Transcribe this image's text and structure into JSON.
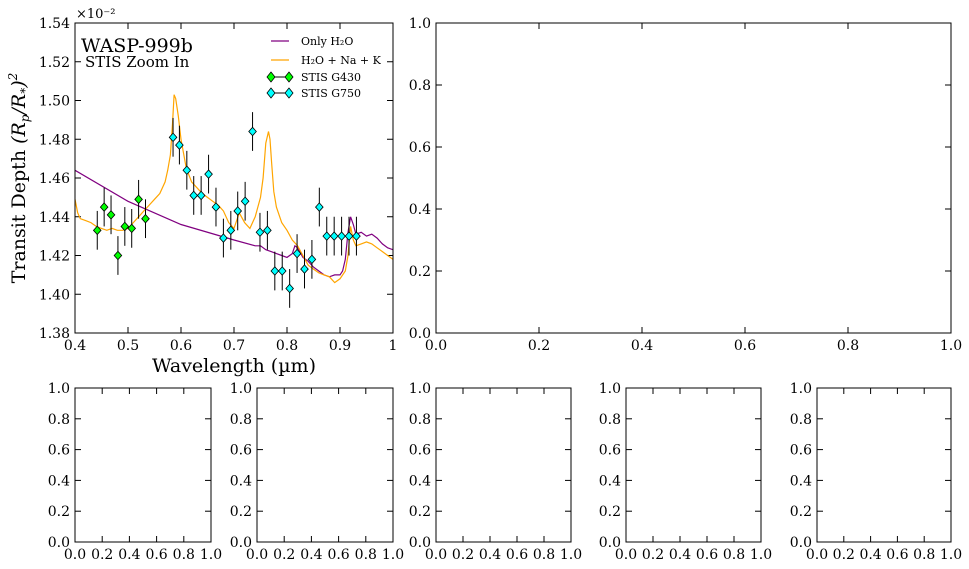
{
  "chart_data": [
    {
      "id": "main",
      "type": "line+errorbar",
      "title": "WASP-999b",
      "subtitle": "STIS Zoom In",
      "xlabel": "Wavelength (µm)",
      "ylabel": "Transit Depth (R_p/R_*)^2",
      "offset_label": "×10⁻²",
      "xlim": [
        0.4,
        1.0
      ],
      "ylim": [
        1.38,
        1.54
      ],
      "xticks": [
        0.4,
        0.5,
        0.6,
        0.7,
        0.8,
        0.9,
        1.0
      ],
      "xtick_labels": [
        "0.4",
        "0.5",
        "0.6",
        "0.7",
        "0.8",
        "0.9",
        "1"
      ],
      "yticks": [
        1.38,
        1.4,
        1.42,
        1.44,
        1.46,
        1.48,
        1.5,
        1.52,
        1.54
      ],
      "ytick_labels": [
        "1.38",
        "1.40",
        "1.42",
        "1.44",
        "1.46",
        "1.48",
        "1.50",
        "1.52",
        "1.54"
      ],
      "legend_position": "top-right",
      "series": [
        {
          "name": "Only H₂O",
          "kind": "line",
          "color": "#800080",
          "x": [
            0.4,
            0.5,
            0.6,
            0.7,
            0.74,
            0.75,
            0.76,
            0.77,
            0.78,
            0.79,
            0.8,
            0.81,
            0.815,
            0.82,
            0.83,
            0.84,
            0.85,
            0.86,
            0.87,
            0.88,
            0.89,
            0.9,
            0.905,
            0.91,
            0.915,
            0.92,
            0.925,
            0.93,
            0.94,
            0.95,
            0.96,
            0.97,
            0.98,
            0.99,
            1.0
          ],
          "y": [
            1.464,
            1.448,
            1.436,
            1.428,
            1.425,
            1.425,
            1.423,
            1.422,
            1.421,
            1.42,
            1.419,
            1.421,
            1.425,
            1.424,
            1.419,
            1.417,
            1.414,
            1.412,
            1.41,
            1.409,
            1.41,
            1.41,
            1.412,
            1.418,
            1.432,
            1.44,
            1.436,
            1.431,
            1.432,
            1.43,
            1.431,
            1.429,
            1.426,
            1.424,
            1.423
          ]
        },
        {
          "name": "H₂O + Na + K",
          "kind": "line",
          "color": "#FFA500",
          "x": [
            0.4,
            0.405,
            0.41,
            0.42,
            0.43,
            0.44,
            0.45,
            0.46,
            0.47,
            0.48,
            0.49,
            0.5,
            0.51,
            0.52,
            0.53,
            0.54,
            0.55,
            0.56,
            0.57,
            0.575,
            0.58,
            0.584,
            0.587,
            0.59,
            0.595,
            0.6,
            0.61,
            0.62,
            0.63,
            0.64,
            0.65,
            0.66,
            0.67,
            0.68,
            0.69,
            0.7,
            0.71,
            0.72,
            0.73,
            0.74,
            0.75,
            0.755,
            0.76,
            0.765,
            0.768,
            0.771,
            0.775,
            0.78,
            0.79,
            0.8,
            0.81,
            0.82,
            0.83,
            0.84,
            0.85,
            0.86,
            0.87,
            0.88,
            0.89,
            0.9,
            0.91,
            0.915,
            0.92,
            0.925,
            0.93,
            0.94,
            0.95,
            0.96,
            0.97,
            0.98,
            0.99,
            1.0
          ],
          "y": [
            1.449,
            1.442,
            1.439,
            1.438,
            1.437,
            1.435,
            1.434,
            1.433,
            1.434,
            1.433,
            1.433,
            1.434,
            1.437,
            1.44,
            1.443,
            1.446,
            1.449,
            1.452,
            1.458,
            1.464,
            1.472,
            1.488,
            1.503,
            1.501,
            1.492,
            1.48,
            1.465,
            1.458,
            1.455,
            1.452,
            1.45,
            1.448,
            1.446,
            1.443,
            1.437,
            1.434,
            1.442,
            1.437,
            1.434,
            1.44,
            1.45,
            1.46,
            1.478,
            1.484,
            1.48,
            1.468,
            1.453,
            1.445,
            1.437,
            1.433,
            1.428,
            1.425,
            1.42,
            1.415,
            1.413,
            1.411,
            1.41,
            1.409,
            1.406,
            1.408,
            1.412,
            1.42,
            1.435,
            1.428,
            1.425,
            1.426,
            1.427,
            1.426,
            1.424,
            1.422,
            1.42,
            1.418
          ]
        },
        {
          "name": "STIS G430",
          "kind": "errorbar",
          "color": "#00FF00",
          "marker": "diamond",
          "x": [
            0.442,
            0.455,
            0.468,
            0.481,
            0.494,
            0.507,
            0.52,
            0.533
          ],
          "y": [
            1.433,
            1.445,
            1.441,
            1.42,
            1.435,
            1.434,
            1.449,
            1.439
          ],
          "yerr": [
            0.01,
            0.01,
            0.01,
            0.01,
            0.01,
            0.01,
            0.01,
            0.01
          ]
        },
        {
          "name": "STIS G750",
          "kind": "errorbar",
          "color": "#00FFFF",
          "marker": "diamond",
          "x": [
            0.585,
            0.597,
            0.611,
            0.624,
            0.638,
            0.652,
            0.666,
            0.68,
            0.694,
            0.707,
            0.721,
            0.735,
            0.749,
            0.763,
            0.777,
            0.791,
            0.805,
            0.819,
            0.833,
            0.847,
            0.861,
            0.875,
            0.889,
            0.903,
            0.917,
            0.931
          ],
          "y": [
            1.481,
            1.477,
            1.464,
            1.451,
            1.451,
            1.462,
            1.445,
            1.429,
            1.433,
            1.443,
            1.448,
            1.484,
            1.432,
            1.433,
            1.412,
            1.412,
            1.403,
            1.421,
            1.413,
            1.418,
            1.445,
            1.43,
            1.43,
            1.43,
            1.43,
            1.43
          ],
          "yerr": [
            0.01,
            0.01,
            0.01,
            0.01,
            0.01,
            0.01,
            0.01,
            0.01,
            0.01,
            0.01,
            0.01,
            0.01,
            0.01,
            0.01,
            0.01,
            0.01,
            0.01,
            0.01,
            0.01,
            0.01,
            0.01,
            0.01,
            0.01,
            0.01,
            0.01,
            0.01
          ]
        }
      ]
    },
    {
      "id": "wide",
      "type": "empty",
      "xlim": [
        0,
        1
      ],
      "ylim": [
        0,
        1
      ],
      "xticks": [
        0.0,
        0.2,
        0.4,
        0.6,
        0.8,
        1.0
      ],
      "xtick_labels": [
        "0.0",
        "0.2",
        "0.4",
        "0.6",
        "0.8",
        "1.0"
      ],
      "yticks": [
        0.0,
        0.2,
        0.4,
        0.6,
        0.8,
        1.0
      ],
      "ytick_labels": [
        "0.0",
        "0.2",
        "0.4",
        "0.6",
        "0.8",
        "1.0"
      ]
    },
    {
      "id": "small1",
      "type": "empty",
      "xlim": [
        0,
        1
      ],
      "ylim": [
        0,
        1
      ],
      "xticks": [
        0.0,
        0.2,
        0.4,
        0.6,
        0.8,
        1.0
      ],
      "xtick_labels": [
        "0.0",
        "0.2",
        "0.4",
        "0.6",
        "0.8",
        "1.0"
      ],
      "yticks": [
        0.0,
        0.2,
        0.4,
        0.6,
        0.8,
        1.0
      ],
      "ytick_labels": [
        "0.0",
        "0.2",
        "0.4",
        "0.6",
        "0.8",
        "1.0"
      ]
    },
    {
      "id": "small2",
      "type": "empty",
      "xlim": [
        0,
        1
      ],
      "ylim": [
        0,
        1
      ],
      "xticks": [
        0.0,
        0.2,
        0.4,
        0.6,
        0.8,
        1.0
      ],
      "xtick_labels": [
        "0.0",
        "0.2",
        "0.4",
        "0.6",
        "0.8",
        "1.0"
      ],
      "yticks": [
        0.0,
        0.2,
        0.4,
        0.6,
        0.8,
        1.0
      ],
      "ytick_labels": [
        "0.0",
        "0.2",
        "0.4",
        "0.6",
        "0.8",
        "1.0"
      ]
    },
    {
      "id": "small3",
      "type": "empty",
      "xlim": [
        0,
        1
      ],
      "ylim": [
        0,
        1
      ],
      "xticks": [
        0.0,
        0.2,
        0.4,
        0.6,
        0.8,
        1.0
      ],
      "xtick_labels": [
        "0.0",
        "0.2",
        "0.4",
        "0.6",
        "0.8",
        "1.0"
      ],
      "yticks": [
        0.0,
        0.2,
        0.4,
        0.6,
        0.8,
        1.0
      ],
      "ytick_labels": [
        "0.0",
        "0.2",
        "0.4",
        "0.6",
        "0.8",
        "1.0"
      ]
    },
    {
      "id": "small4",
      "type": "empty",
      "xlim": [
        0,
        1
      ],
      "ylim": [
        0,
        1
      ],
      "xticks": [
        0.0,
        0.2,
        0.4,
        0.6,
        0.8,
        1.0
      ],
      "xtick_labels": [
        "0.0",
        "0.2",
        "0.4",
        "0.6",
        "0.8",
        "1.0"
      ],
      "yticks": [
        0.0,
        0.2,
        0.4,
        0.6,
        0.8,
        1.0
      ],
      "ytick_labels": [
        "0.0",
        "0.2",
        "0.4",
        "0.6",
        "0.8",
        "1.0"
      ]
    },
    {
      "id": "small5",
      "type": "empty",
      "xlim": [
        0,
        1
      ],
      "ylim": [
        0,
        1
      ],
      "xticks": [
        0.0,
        0.2,
        0.4,
        0.6,
        0.8,
        1.0
      ],
      "xtick_labels": [
        "0.0",
        "0.2",
        "0.4",
        "0.6",
        "0.8",
        "1.0"
      ],
      "yticks": [
        0.0,
        0.2,
        0.4,
        0.6,
        0.8,
        1.0
      ],
      "ytick_labels": [
        "0.0",
        "0.2",
        "0.4",
        "0.6",
        "0.8",
        "1.0"
      ]
    }
  ]
}
